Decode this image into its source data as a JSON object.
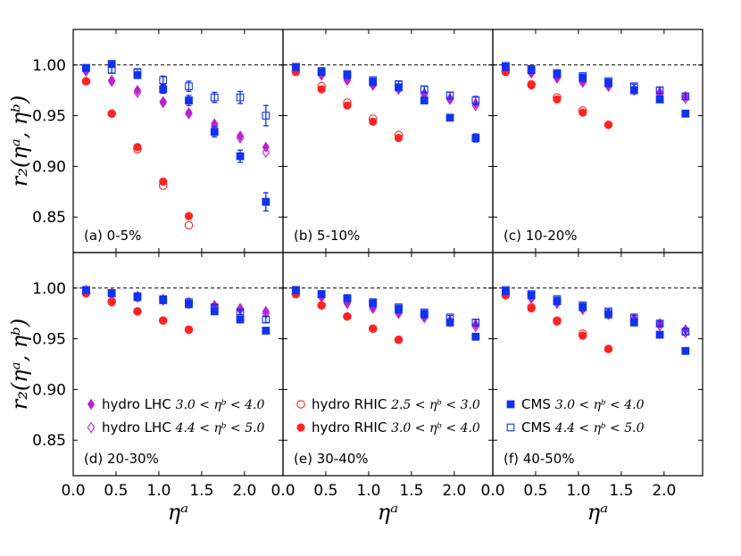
{
  "chart_data": {
    "type": "scatter",
    "figure": "grid of 6 panels (2 rows x 3 columns), shared axes",
    "ylabel": "r₂(ηᵃ, ηᵇ)",
    "xlabel": "ηᵃ",
    "xlim": [
      0.0,
      2.45
    ],
    "ylim": [
      0.815,
      1.035
    ],
    "reference_line": 1.0,
    "xticks": [
      0.0,
      0.5,
      1.0,
      1.5,
      2.0
    ],
    "xtick_labels": [
      "0.0",
      "0.5",
      "1.0",
      "1.5",
      "2.0"
    ],
    "yticks": [
      0.85,
      0.9,
      0.95,
      1.0
    ],
    "ytick_labels": [
      "0.85",
      "0.90",
      "0.95",
      "1.00"
    ],
    "series_styles": [
      {
        "key": "lhc30",
        "name": "hydro LHC",
        "cond": "3.0 < ηᵇ < 4.0",
        "color": "#bb22cc",
        "marker": "diamond-filled"
      },
      {
        "key": "lhc44",
        "name": "hydro LHC",
        "cond": "4.4 < ηᵇ < 5.0",
        "color": "#bb22cc",
        "marker": "diamond-open"
      },
      {
        "key": "rhic25",
        "name": "hydro RHIC",
        "cond": "2.5 < ηᵇ < 3.0",
        "color": "#ff2222",
        "marker": "circle-open"
      },
      {
        "key": "rhic30",
        "name": "hydro RHIC",
        "cond": "3.0 < ηᵇ < 4.0",
        "color": "#ff2222",
        "marker": "circle-filled"
      },
      {
        "key": "cms30",
        "name": "CMS",
        "cond": "3.0 < ηᵇ < 4.0",
        "color": "#1133ee",
        "marker": "square-filled"
      },
      {
        "key": "cms44",
        "name": "CMS",
        "cond": "4.4 < ηᵇ < 5.0",
        "color": "#1133ee",
        "marker": "square-open"
      }
    ],
    "legend_layout": [
      {
        "panel": 3,
        "keys": [
          "lhc30",
          "lhc44"
        ]
      },
      {
        "panel": 4,
        "keys": [
          "rhic25",
          "rhic30"
        ]
      },
      {
        "panel": 5,
        "keys": [
          "cms30",
          "cms44"
        ]
      }
    ],
    "panels": [
      {
        "label": "(a) 0-5%",
        "series": {
          "lhc30": {
            "x": [
              0.15,
              0.45,
              0.75,
              1.05,
              1.35,
              1.65,
              1.95,
              2.25
            ],
            "y": [
              0.995,
              0.985,
              0.975,
              0.964,
              0.953,
              0.942,
              0.93,
              0.919
            ]
          },
          "lhc44": {
            "x": [
              0.15,
              0.45,
              0.75,
              1.05,
              1.35,
              1.65,
              1.95,
              2.25
            ],
            "y": [
              0.994,
              0.984,
              0.973,
              0.963,
              0.952,
              0.94,
              0.928,
              0.914
            ]
          },
          "rhic25": {
            "x": [
              0.15,
              0.45,
              0.75,
              1.05,
              1.35
            ],
            "y": [
              0.984,
              0.952,
              0.917,
              0.881,
              0.842
            ]
          },
          "rhic30": {
            "x": [
              0.15,
              0.45,
              0.75,
              1.05,
              1.35
            ],
            "y": [
              0.984,
              0.952,
              0.919,
              0.885,
              0.851
            ]
          },
          "cms30": {
            "x": [
              0.15,
              0.45,
              0.75,
              1.05,
              1.35,
              1.65,
              1.95,
              2.25
            ],
            "y": [
              0.997,
              1.001,
              0.99,
              0.976,
              0.965,
              0.934,
              0.91,
              0.865
            ],
            "err": [
              0.003,
              0.003,
              0.003,
              0.004,
              0.005,
              0.005,
              0.006,
              0.009
            ]
          },
          "cms44": {
            "x": [
              0.15,
              0.45,
              0.75,
              1.05,
              1.35,
              1.65,
              1.95,
              2.25
            ],
            "y": [
              0.997,
              0.995,
              0.993,
              0.985,
              0.979,
              0.968,
              0.968,
              0.95
            ],
            "err": [
              0.003,
              0.003,
              0.003,
              0.004,
              0.005,
              0.005,
              0.006,
              0.01
            ]
          }
        }
      },
      {
        "label": "(b) 5-10%",
        "series": {
          "lhc30": {
            "x": [
              0.15,
              0.45,
              0.75,
              1.05,
              1.35,
              1.65,
              1.95,
              2.25
            ],
            "y": [
              0.996,
              0.991,
              0.986,
              0.981,
              0.977,
              0.972,
              0.967,
              0.962
            ]
          },
          "lhc44": {
            "x": [
              0.15,
              0.45,
              0.75,
              1.05,
              1.35,
              1.65,
              1.95,
              2.25
            ],
            "y": [
              0.995,
              0.99,
              0.985,
              0.98,
              0.976,
              0.971,
              0.966,
              0.96
            ]
          },
          "rhic25": {
            "x": [
              0.15,
              0.45,
              0.75,
              1.05,
              1.35
            ],
            "y": [
              0.994,
              0.979,
              0.963,
              0.947,
              0.931
            ]
          },
          "rhic30": {
            "x": [
              0.15,
              0.45,
              0.75,
              1.05,
              1.35
            ],
            "y": [
              0.993,
              0.976,
              0.96,
              0.944,
              0.928
            ]
          },
          "cms30": {
            "x": [
              0.15,
              0.45,
              0.75,
              1.05,
              1.35,
              1.65,
              1.95,
              2.25
            ],
            "y": [
              0.998,
              0.993,
              0.99,
              0.983,
              0.978,
              0.965,
              0.948,
              0.928
            ],
            "err": [
              0.002,
              0.002,
              0.002,
              0.002,
              0.003,
              0.003,
              0.003,
              0.004
            ]
          },
          "cms44": {
            "x": [
              0.15,
              0.45,
              0.75,
              1.05,
              1.35,
              1.65,
              1.95,
              2.25
            ],
            "y": [
              0.998,
              0.994,
              0.991,
              0.985,
              0.981,
              0.976,
              0.97,
              0.965
            ],
            "err": [
              0.002,
              0.002,
              0.002,
              0.002,
              0.003,
              0.003,
              0.003,
              0.004
            ]
          }
        }
      },
      {
        "label": "(c) 10-20%",
        "series": {
          "lhc30": {
            "x": [
              0.15,
              0.45,
              0.75,
              1.05,
              1.35,
              1.65,
              1.95,
              2.25
            ],
            "y": [
              0.997,
              0.993,
              0.988,
              0.984,
              0.98,
              0.976,
              0.973,
              0.969
            ]
          },
          "lhc44": {
            "x": [
              0.15,
              0.45,
              0.75,
              1.05,
              1.35,
              1.65,
              1.95,
              2.25
            ],
            "y": [
              0.996,
              0.992,
              0.987,
              0.983,
              0.979,
              0.975,
              0.971,
              0.967
            ]
          },
          "rhic25": {
            "x": [
              0.15,
              0.45,
              0.75,
              1.05,
              1.35
            ],
            "y": [
              0.994,
              0.981,
              0.968,
              0.955,
              0.941
            ]
          },
          "rhic30": {
            "x": [
              0.15,
              0.45,
              0.75,
              1.05,
              1.35
            ],
            "y": [
              0.993,
              0.98,
              0.966,
              0.953,
              0.941
            ]
          },
          "cms30": {
            "x": [
              0.15,
              0.45,
              0.75,
              1.05,
              1.35,
              1.65,
              1.95,
              2.25
            ],
            "y": [
              0.998,
              0.995,
              0.991,
              0.987,
              0.982,
              0.975,
              0.966,
              0.952
            ],
            "err": [
              0.002,
              0.002,
              0.002,
              0.002,
              0.002,
              0.002,
              0.003,
              0.003
            ]
          },
          "cms44": {
            "x": [
              0.15,
              0.45,
              0.75,
              1.05,
              1.35,
              1.65,
              1.95,
              2.25
            ],
            "y": [
              0.999,
              0.996,
              0.992,
              0.989,
              0.984,
              0.979,
              0.975,
              0.969
            ],
            "err": [
              0.002,
              0.002,
              0.002,
              0.002,
              0.002,
              0.002,
              0.003,
              0.003
            ]
          }
        }
      },
      {
        "label": "(d) 20-30%",
        "series": {
          "lhc30": {
            "x": [
              0.15,
              0.45,
              0.75,
              1.05,
              1.35,
              1.65,
              1.95,
              2.25
            ],
            "y": [
              0.998,
              0.995,
              0.992,
              0.989,
              0.986,
              0.983,
              0.98,
              0.977
            ]
          },
          "lhc44": {
            "x": [
              0.15,
              0.45,
              0.75,
              1.05,
              1.35,
              1.65,
              1.95,
              2.25
            ],
            "y": [
              0.997,
              0.994,
              0.991,
              0.988,
              0.985,
              0.982,
              0.979,
              0.975
            ]
          },
          "rhic25": {
            "x": [
              0.15,
              0.45,
              0.75,
              1.05,
              1.35
            ],
            "y": [
              0.995,
              0.987,
              0.977,
              0.968,
              0.959
            ]
          },
          "rhic30": {
            "x": [
              0.15,
              0.45,
              0.75,
              1.05,
              1.35
            ],
            "y": [
              0.995,
              0.986,
              0.977,
              0.968,
              0.959
            ]
          },
          "cms30": {
            "x": [
              0.15,
              0.45,
              0.75,
              1.05,
              1.35,
              1.65,
              1.95,
              2.25
            ],
            "y": [
              0.998,
              0.995,
              0.991,
              0.988,
              0.984,
              0.977,
              0.969,
              0.958
            ],
            "err": [
              0.002,
              0.002,
              0.002,
              0.002,
              0.002,
              0.002,
              0.002,
              0.002
            ]
          },
          "cms44": {
            "x": [
              0.15,
              0.45,
              0.75,
              1.05,
              1.35,
              1.65,
              1.95,
              2.25
            ],
            "y": [
              0.998,
              0.995,
              0.992,
              0.989,
              0.986,
              0.981,
              0.976,
              0.969
            ],
            "err": [
              0.002,
              0.002,
              0.002,
              0.002,
              0.002,
              0.002,
              0.002,
              0.003
            ]
          }
        }
      },
      {
        "label": "(e) 30-40%",
        "series": {
          "lhc30": {
            "x": [
              0.15,
              0.45,
              0.75,
              1.05,
              1.35,
              1.65,
              1.95,
              2.25
            ],
            "y": [
              0.997,
              0.992,
              0.986,
              0.981,
              0.976,
              0.972,
              0.968,
              0.964
            ]
          },
          "lhc44": {
            "x": [
              0.15,
              0.45,
              0.75,
              1.05,
              1.35,
              1.65,
              1.95,
              2.25
            ],
            "y": [
              0.996,
              0.991,
              0.985,
              0.98,
              0.975,
              0.971,
              0.967,
              0.962
            ]
          },
          "rhic25": {
            "x": [
              0.15,
              0.45,
              0.75,
              1.05,
              1.35
            ],
            "y": [
              0.994,
              0.983,
              0.972,
              0.96,
              0.949
            ]
          },
          "rhic30": {
            "x": [
              0.15,
              0.45,
              0.75,
              1.05,
              1.35
            ],
            "y": [
              0.994,
              0.983,
              0.972,
              0.96,
              0.949
            ]
          },
          "cms30": {
            "x": [
              0.15,
              0.45,
              0.75,
              1.05,
              1.35,
              1.65,
              1.95,
              2.25
            ],
            "y": [
              0.998,
              0.994,
              0.99,
              0.985,
              0.979,
              0.974,
              0.966,
              0.952
            ],
            "err": [
              0.002,
              0.002,
              0.002,
              0.002,
              0.002,
              0.002,
              0.002,
              0.003
            ]
          },
          "cms44": {
            "x": [
              0.15,
              0.45,
              0.75,
              1.05,
              1.35,
              1.65,
              1.95,
              2.25
            ],
            "y": [
              0.998,
              0.994,
              0.99,
              0.986,
              0.981,
              0.976,
              0.971,
              0.966
            ],
            "err": [
              0.002,
              0.002,
              0.002,
              0.002,
              0.002,
              0.002,
              0.002,
              0.003
            ]
          }
        }
      },
      {
        "label": "(f) 40-50%",
        "series": {
          "lhc30": {
            "x": [
              0.15,
              0.45,
              0.75,
              1.05,
              1.35,
              1.65,
              1.95,
              2.25
            ],
            "y": [
              0.996,
              0.991,
              0.986,
              0.98,
              0.975,
              0.97,
              0.965,
              0.959
            ]
          },
          "lhc44": {
            "x": [
              0.15,
              0.45,
              0.75,
              1.05,
              1.35,
              1.65,
              1.95,
              2.25
            ],
            "y": [
              0.995,
              0.99,
              0.985,
              0.979,
              0.974,
              0.969,
              0.963,
              0.956
            ]
          },
          "rhic25": {
            "x": [
              0.15,
              0.45,
              0.75,
              1.05,
              1.35
            ],
            "y": [
              0.993,
              0.981,
              0.968,
              0.955,
              0.94
            ]
          },
          "rhic30": {
            "x": [
              0.15,
              0.45,
              0.75,
              1.05,
              1.35
            ],
            "y": [
              0.993,
              0.98,
              0.967,
              0.953,
              0.94
            ]
          },
          "cms30": {
            "x": [
              0.15,
              0.45,
              0.75,
              1.05,
              1.35,
              1.65,
              1.95,
              2.25
            ],
            "y": [
              0.997,
              0.993,
              0.987,
              0.981,
              0.974,
              0.966,
              0.954,
              0.938
            ],
            "err": [
              0.002,
              0.002,
              0.002,
              0.002,
              0.002,
              0.002,
              0.002,
              0.003
            ]
          },
          "cms44": {
            "x": [
              0.15,
              0.45,
              0.75,
              1.05,
              1.35,
              1.65,
              1.95,
              2.25
            ],
            "y": [
              0.998,
              0.994,
              0.989,
              0.983,
              0.977,
              0.971,
              0.965,
              0.957
            ],
            "err": [
              0.002,
              0.002,
              0.002,
              0.002,
              0.002,
              0.002,
              0.002,
              0.003
            ]
          }
        }
      }
    ]
  }
}
